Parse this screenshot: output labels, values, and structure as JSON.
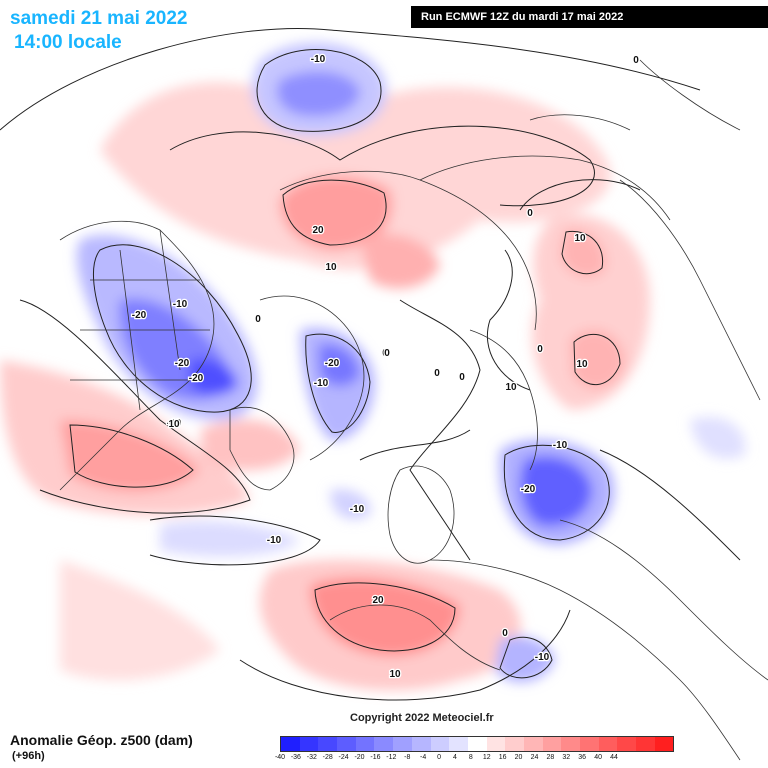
{
  "header": {
    "date_title": "samedi 21 mai 2022",
    "time_title": "14:00 locale",
    "run_info": "Run ECMWF 12Z du mardi 17 mai 2022"
  },
  "footer": {
    "legend_title": "Anomalie Géop. z500 (dam)",
    "lead_time": "(+96h)",
    "copyright": "Copyright 2022 Meteociel.fr"
  },
  "colorbar": {
    "ticks": [
      "-40",
      "-36",
      "-32",
      "-28",
      "-24",
      "-20",
      "-16",
      "-12",
      "-8",
      "-4",
      "0",
      "4",
      "8",
      "12",
      "16",
      "20",
      "24",
      "28",
      "32",
      "36",
      "40",
      "44"
    ],
    "colors": [
      "#1f1fff",
      "#3535ff",
      "#4848ff",
      "#5d5dff",
      "#7373ff",
      "#8a8aff",
      "#a0a0ff",
      "#b6b6ff",
      "#cdcdff",
      "#e3e3ff",
      "#ffffff",
      "#ffe3e3",
      "#ffcdcd",
      "#ffb6b6",
      "#ffa0a0",
      "#ff8a8a",
      "#ff7373",
      "#ff5d5d",
      "#ff4848",
      "#ff3535",
      "#ff1f1f"
    ]
  },
  "anomaly_labels": [
    "-10",
    "0",
    "20",
    "10",
    "0",
    "-10",
    "-20",
    "-20",
    "-20",
    "-10",
    "0",
    "-20",
    "-10",
    "0",
    "0",
    "0",
    "10",
    "10",
    "0",
    "10",
    "10",
    "-10",
    "-20",
    "-10",
    "-10",
    "20",
    "0",
    "-10",
    "10",
    "0"
  ],
  "icons": {
    "coastlines": "coastline-outlines",
    "pole": "north-pole-projection"
  }
}
